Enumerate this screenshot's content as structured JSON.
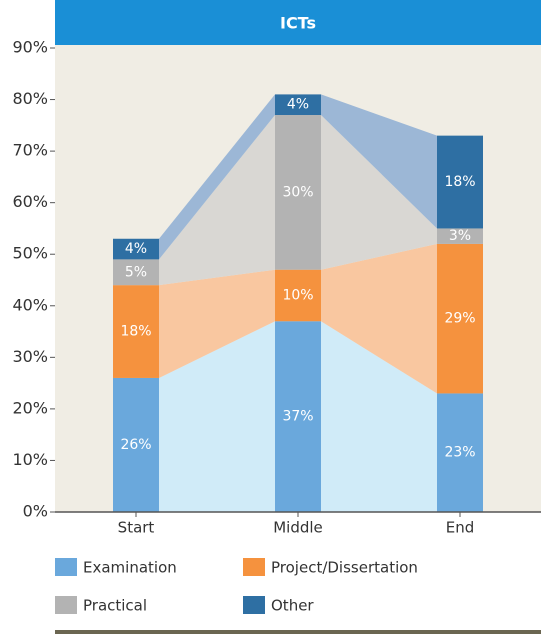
{
  "chart_data": {
    "type": "stacked_bar",
    "title": "ICTs",
    "categories": [
      "Start",
      "Middle",
      "End"
    ],
    "series": [
      {
        "name": "Examination",
        "color": "#6aa8dc",
        "band_color": "#d0ebf8",
        "values": [
          26,
          37,
          23
        ],
        "value_labels": [
          "26%",
          "37%",
          "23%"
        ]
      },
      {
        "name": "Project/Dissertation",
        "color": "#f5923e",
        "band_color": "#f9c7a0",
        "values": [
          18,
          10,
          29
        ],
        "value_labels": [
          "18%",
          "10%",
          "29%"
        ]
      },
      {
        "name": "Practical",
        "color": "#b3b3b3",
        "band_color": "#d9d7d3",
        "values": [
          5,
          30,
          3
        ],
        "value_labels": [
          "5%",
          "30%",
          "3%"
        ]
      },
      {
        "name": "Other",
        "color": "#2e6fa3",
        "band_color": "#9cb7d6",
        "values": [
          4,
          4,
          18
        ],
        "value_labels": [
          "4%",
          "4%",
          "18%"
        ]
      }
    ],
    "ylim": [
      0,
      90
    ],
    "yticks": [
      {
        "value": 0,
        "label": "0%"
      },
      {
        "value": 10,
        "label": "10%"
      },
      {
        "value": 20,
        "label": "20%"
      },
      {
        "value": 30,
        "label": "30%"
      },
      {
        "value": 40,
        "label": "40%"
      },
      {
        "value": 50,
        "label": "50%"
      },
      {
        "value": 60,
        "label": "60%"
      },
      {
        "value": 70,
        "label": "70%"
      },
      {
        "value": 80,
        "label": "80%"
      },
      {
        "value": 90,
        "label": "90%"
      }
    ],
    "grid": false
  }
}
